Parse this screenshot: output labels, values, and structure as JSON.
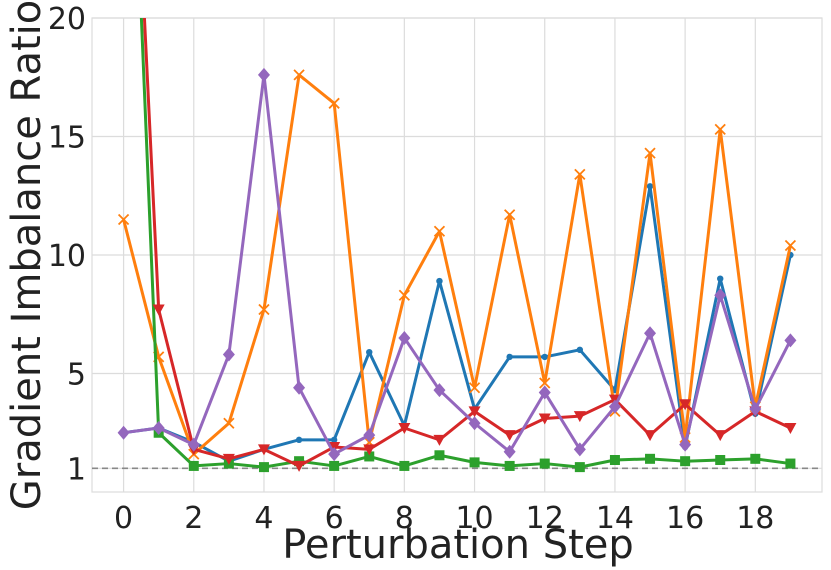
{
  "chart_data": {
    "type": "line",
    "title": "",
    "xlabel": "Perturbation Step",
    "ylabel": "Gradient Imbalance Ratio",
    "xlim": [
      -0.9,
      19.9
    ],
    "ylim": [
      0,
      20
    ],
    "xticks": [
      0,
      2,
      4,
      6,
      8,
      10,
      12,
      14,
      16,
      18
    ],
    "yticks": [
      1,
      5,
      10,
      15,
      20
    ],
    "reference_line": 1,
    "grid": true,
    "x": [
      0,
      1,
      2,
      3,
      4,
      5,
      6,
      7,
      8,
      9,
      10,
      11,
      12,
      13,
      14,
      15,
      16,
      17,
      18,
      19
    ],
    "series": [
      {
        "color": "#1f77b4",
        "marker": "dot",
        "values": [
          2.5,
          2.7,
          2.1,
          1.3,
          1.8,
          2.2,
          2.2,
          5.9,
          2.8,
          8.9,
          3.5,
          5.7,
          5.7,
          6.0,
          4.3,
          12.9,
          1.9,
          9.0,
          3.3,
          10.0
        ]
      },
      {
        "color": "#ff7f0e",
        "marker": "x",
        "values": [
          11.5,
          5.7,
          1.6,
          2.9,
          7.7,
          17.6,
          16.4,
          2.1,
          8.3,
          11.0,
          4.4,
          11.7,
          4.6,
          13.4,
          3.4,
          14.3,
          2.3,
          15.3,
          3.6,
          10.4
        ]
      },
      {
        "color": "#2ca02c",
        "marker": "square",
        "values": [
          38,
          2.5,
          1.1,
          1.2,
          1.05,
          1.3,
          1.1,
          1.5,
          1.1,
          1.55,
          1.25,
          1.1,
          1.2,
          1.05,
          1.35,
          1.4,
          1.3,
          1.35,
          1.4,
          1.2
        ]
      },
      {
        "color": "#d62728",
        "marker": "triangle-down",
        "values": [
          38,
          7.7,
          1.8,
          1.4,
          1.8,
          1.1,
          1.9,
          1.8,
          2.7,
          2.2,
          3.4,
          2.4,
          3.1,
          3.2,
          3.9,
          2.4,
          3.7,
          2.4,
          3.4,
          2.7
        ]
      },
      {
        "color": "#9467bd",
        "marker": "diamond",
        "values": [
          2.5,
          2.7,
          2.0,
          5.8,
          17.6,
          4.4,
          1.6,
          2.4,
          6.5,
          4.3,
          2.9,
          1.7,
          4.2,
          1.8,
          3.6,
          6.7,
          2.0,
          8.3,
          3.5,
          6.4
        ]
      }
    ]
  }
}
